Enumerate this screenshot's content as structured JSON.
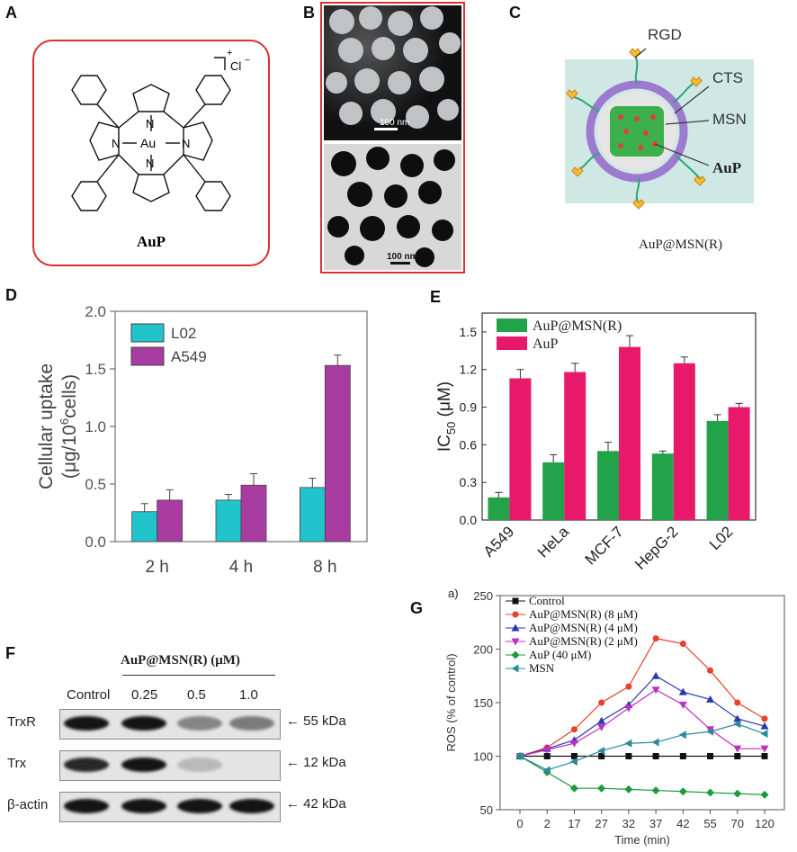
{
  "panels": {
    "A": {
      "letter": "A",
      "charge": "+",
      "counterion": "Cl",
      "counterion_charge": "−",
      "metal": "Au",
      "n_atom": "N",
      "name": "AuP",
      "color_frame": "#d93030"
    },
    "B": {
      "letter": "B",
      "scale_top": "100 nm",
      "scale_bottom": "100 nm"
    },
    "C": {
      "letter": "C",
      "labels": [
        "RGD",
        "CTS",
        "MSN",
        "AuP"
      ],
      "caption": "AuP@MSN(R)"
    },
    "D": {
      "letter": "D"
    },
    "E": {
      "letter": "E"
    },
    "F": {
      "letter": "F",
      "treatment": "AuP@MSN(R) (μM)",
      "lanes": [
        "Control",
        "0.25",
        "0.5",
        "1.0"
      ],
      "rows": [
        {
          "name": "TrxR",
          "size": "55 kDa",
          "intensity": [
            1.0,
            1.0,
            0.45,
            0.5
          ]
        },
        {
          "name": "Trx",
          "size": "12 kDa",
          "intensity": [
            0.9,
            1.0,
            0.2,
            0.0
          ]
        },
        {
          "name": "β-actin",
          "size": "42 kDa",
          "intensity": [
            1.0,
            1.0,
            1.0,
            1.0
          ]
        }
      ]
    },
    "G": {
      "letter": "G",
      "sublabel": "a)"
    }
  },
  "chart_data": [
    {
      "id": "D",
      "type": "bar",
      "categories": [
        "2 h",
        "4 h",
        "8 h"
      ],
      "series": [
        {
          "name": "L02",
          "values": [
            0.26,
            0.36,
            0.47
          ],
          "errors": [
            0.07,
            0.05,
            0.08
          ],
          "color": "#22c4cc"
        },
        {
          "name": "A549",
          "values": [
            0.36,
            0.49,
            1.53
          ],
          "errors": [
            0.09,
            0.1,
            0.09
          ],
          "color": "#a83ca0"
        }
      ],
      "ylabel": "Cellular uptake",
      "ylabel2": "(μg/10",
      "ylabel_sup": "6",
      "ylabel_end": "cells)",
      "ylim": [
        0,
        2.0
      ],
      "yticks": [
        "0.0",
        "0.5",
        "1.0",
        "1.5",
        "2.0"
      ],
      "legend": "top-left"
    },
    {
      "id": "E",
      "type": "bar",
      "categories": [
        "A549",
        "HeLa",
        "MCF-7",
        "HepG-2",
        "L02"
      ],
      "series": [
        {
          "name": "AuP@MSN(R)",
          "values": [
            0.18,
            0.46,
            0.55,
            0.53,
            0.79
          ],
          "errors": [
            0.04,
            0.06,
            0.07,
            0.02,
            0.05
          ],
          "color": "#22a34a"
        },
        {
          "name": "AuP",
          "values": [
            1.13,
            1.18,
            1.38,
            1.25,
            0.9
          ],
          "errors": [
            0.07,
            0.07,
            0.09,
            0.05,
            0.03
          ],
          "color": "#e8196a"
        }
      ],
      "ylabel": "IC",
      "ylabel_sub": "50",
      "ylabel_unit": " (μM)",
      "ylim": [
        0,
        1.65
      ],
      "yticks": [
        "0.0",
        "0.3",
        "0.6",
        "0.9",
        "1.2",
        "1.5"
      ],
      "legend": "top-left"
    },
    {
      "id": "G",
      "type": "line",
      "x": [
        "0",
        "2",
        "17",
        "27",
        "32",
        "37",
        "42",
        "55",
        "70",
        "120"
      ],
      "xlabel": "Time (min)",
      "ylabel": "ROS (% of control)",
      "ylim": [
        50,
        250
      ],
      "yticks": [
        "50",
        "100",
        "150",
        "200",
        "250"
      ],
      "legend": "top-left",
      "series": [
        {
          "name": "Control",
          "values": [
            100,
            100,
            100,
            100,
            100,
            100,
            100,
            100,
            100,
            100
          ],
          "color": "#111111",
          "marker": "square"
        },
        {
          "name": "AuP@MSN(R) (8 μM)",
          "values": [
            100,
            108,
            125,
            150,
            165,
            210,
            205,
            180,
            150,
            135
          ],
          "color": "#e8402a",
          "marker": "circle"
        },
        {
          "name": "AuP@MSN(R) (4 μM)",
          "values": [
            100,
            107,
            115,
            133,
            148,
            175,
            160,
            153,
            135,
            128
          ],
          "color": "#2a3ab0",
          "marker": "triangle"
        },
        {
          "name": "AuP@MSN(R) (2 μM)",
          "values": [
            100,
            106,
            112,
            127,
            145,
            162,
            148,
            125,
            107,
            107
          ],
          "color": "#c030c0",
          "marker": "triangle-down"
        },
        {
          "name": "AuP (40 μM)",
          "values": [
            100,
            85,
            70,
            70,
            69,
            68,
            67,
            66,
            65,
            64
          ],
          "color": "#1e9a3c",
          "marker": "diamond"
        },
        {
          "name": "MSN",
          "values": [
            100,
            87,
            95,
            105,
            112,
            113,
            120,
            123,
            130,
            121
          ],
          "color": "#2a8a9a",
          "marker": "triangle-left"
        }
      ]
    }
  ]
}
